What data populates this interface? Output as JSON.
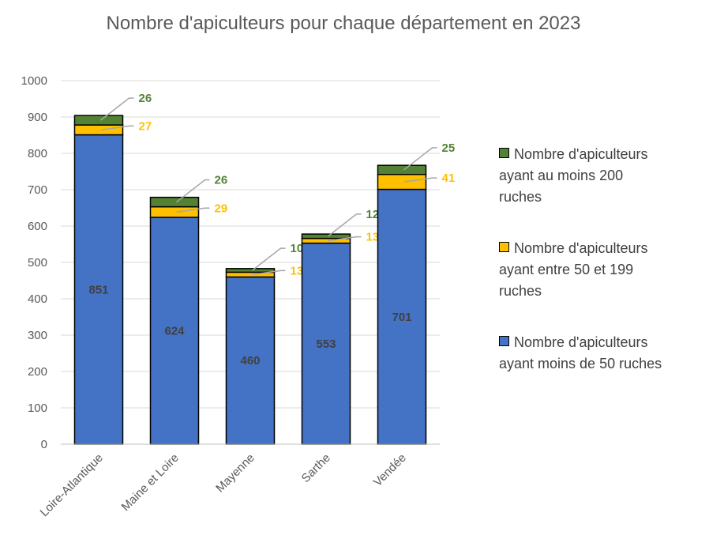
{
  "chart_data": {
    "type": "bar",
    "stacked": true,
    "title": "Nombre d'apiculteurs pour chaque département en 2023",
    "xlabel": "",
    "ylabel": "",
    "ylim": [
      0,
      1000
    ],
    "yticks": [
      0,
      100,
      200,
      300,
      400,
      500,
      600,
      700,
      800,
      900,
      1000
    ],
    "grid": true,
    "legend_position": "right",
    "categories": [
      "Loire-Atlantique",
      "Maine et Loire",
      "Mayenne",
      "Sarthe",
      "Vendée"
    ],
    "series": [
      {
        "name": "Nombre d'apiculteurs ayant moins de 50 ruches",
        "color": "#4472C4",
        "values": [
          851,
          624,
          460,
          553,
          701
        ]
      },
      {
        "name": "Nombre d'apiculteurs ayant entre 50 et 199 ruches",
        "color": "#FFC000",
        "values": [
          27,
          29,
          13,
          13,
          41
        ]
      },
      {
        "name": "Nombre d'apiculteurs ayant au moins 200 ruches",
        "color": "#548235",
        "values": [
          26,
          26,
          10,
          12,
          25
        ]
      }
    ],
    "legend_lines": [
      [
        "Nombre d'apiculteurs",
        "ayant au moins 200",
        "ruches"
      ],
      [
        "Nombre d'apiculteurs",
        "ayant entre 50 et 199",
        "ruches"
      ],
      [
        "Nombre d'apiculteurs",
        "ayant moins de 50 ruches"
      ]
    ]
  }
}
